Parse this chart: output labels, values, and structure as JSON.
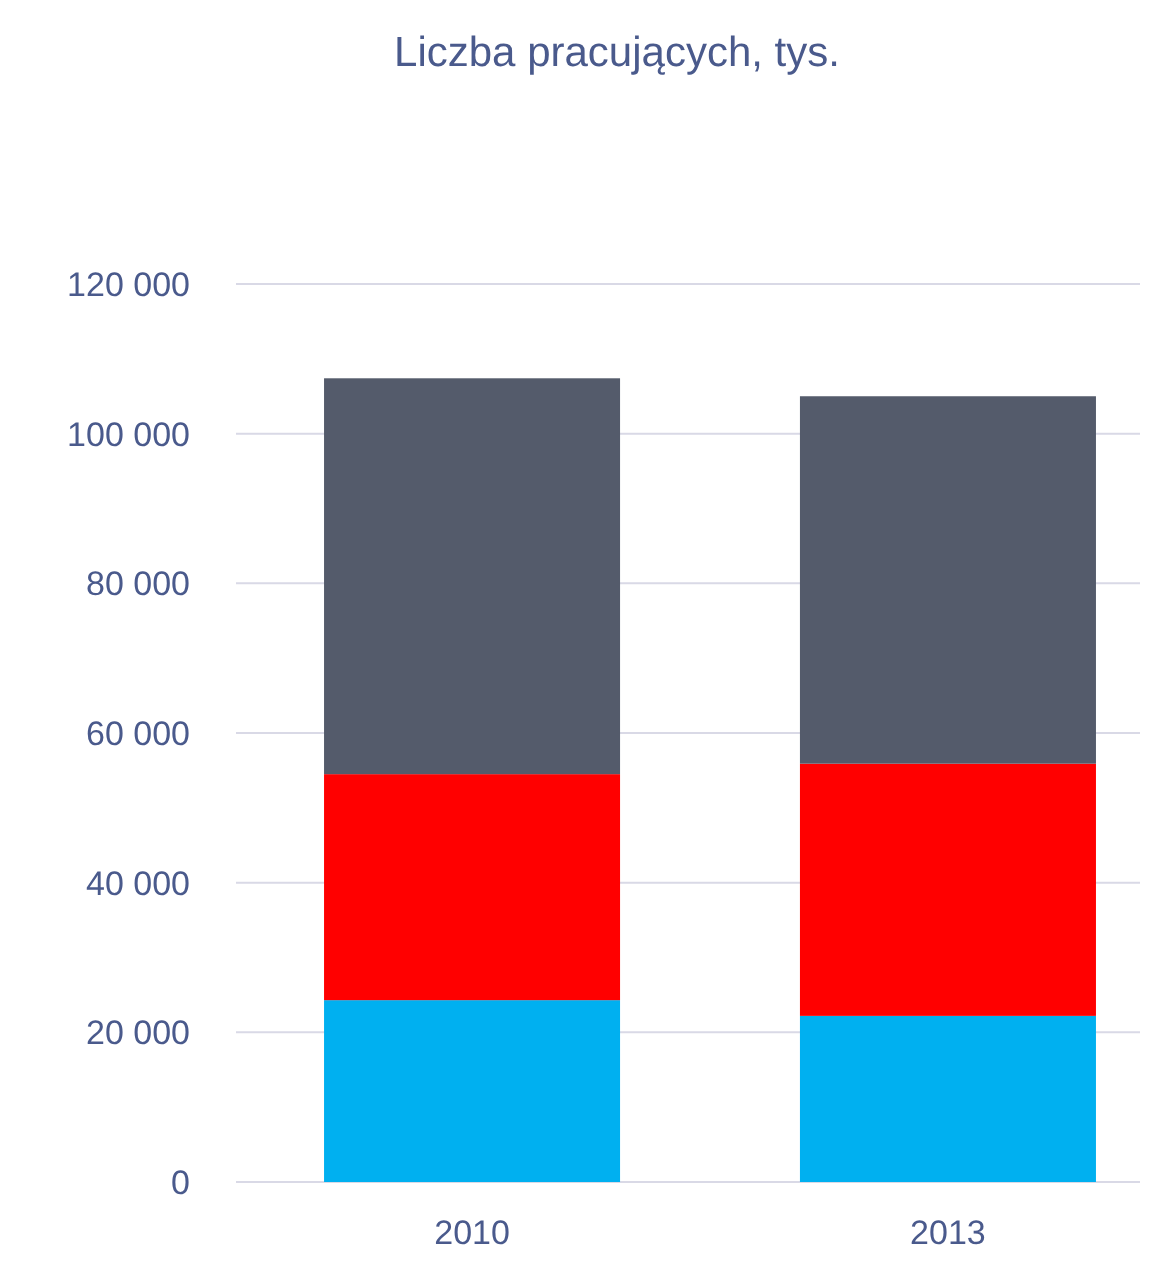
{
  "chart_data": {
    "type": "bar",
    "title": "Liczba pracujących, tys.",
    "categories": [
      "2010",
      "2013"
    ],
    "stacked": true,
    "series": [
      {
        "color": "#00b0f0",
        "values": [
          24300,
          22200
        ]
      },
      {
        "color": "#ff0000",
        "values": [
          30200,
          33700
        ]
      },
      {
        "color": "#545b6b",
        "values": [
          52900,
          49100
        ]
      }
    ],
    "ylim": [
      0,
      120000
    ],
    "yticks": [
      {
        "value": 0,
        "label": "0"
      },
      {
        "value": 20000,
        "label": "20 000"
      },
      {
        "value": 40000,
        "label": "40 000"
      },
      {
        "value": 60000,
        "label": "60 000"
      },
      {
        "value": 80000,
        "label": "80 000"
      },
      {
        "value": 100000,
        "label": "100 000"
      },
      {
        "value": 120000,
        "label": "120 000"
      }
    ],
    "grid": "y"
  }
}
